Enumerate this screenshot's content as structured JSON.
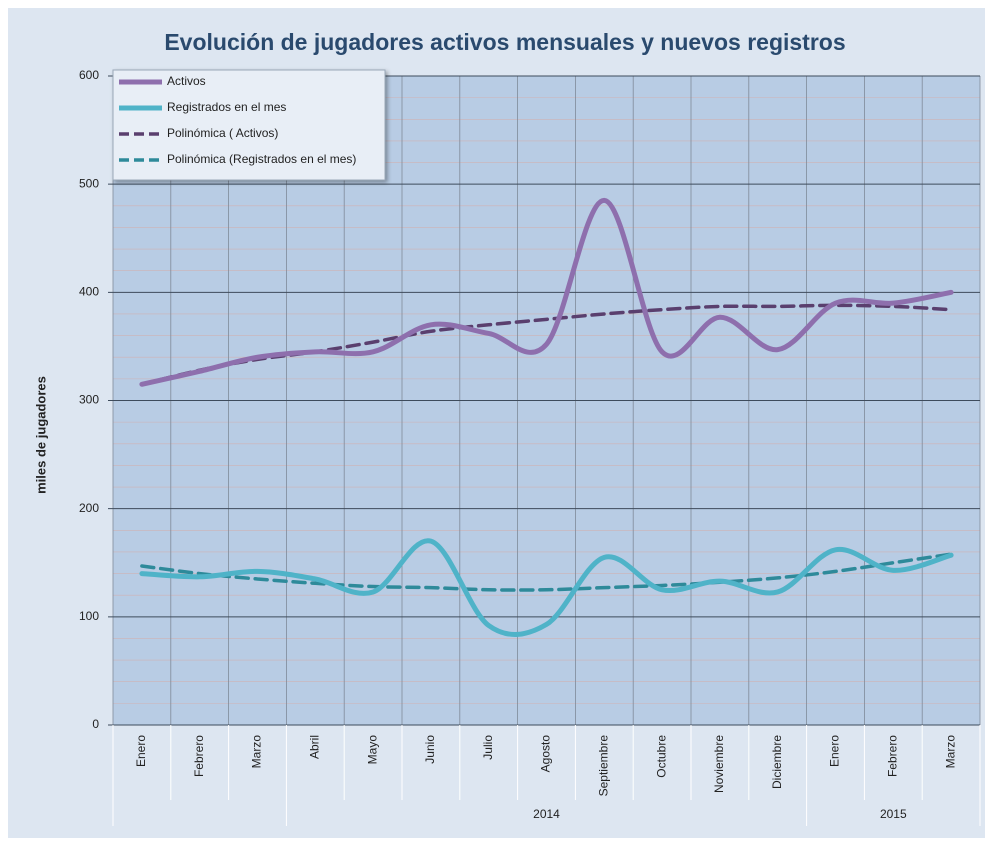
{
  "chart_data": {
    "type": "line",
    "title": "Evolución de jugadores activos mensuales y nuevos registros",
    "y_label": "miles de jugadores",
    "categories": [
      "Enero",
      "Febrero",
      "Marzo",
      "Abril",
      "Mayo",
      "Junio",
      "Julio",
      "Agosto",
      "Septiembre",
      "Octubre",
      "Noviembre",
      "Diciembre",
      "Enero",
      "Febrero",
      "Marzo"
    ],
    "group_labels": [
      null,
      "2014",
      "2015"
    ],
    "group_sizes": [
      3,
      9,
      3
    ],
    "series": [
      {
        "name": "Activos",
        "color": "#8e6fad",
        "dashed": false,
        "values": [
          315,
          327,
          340,
          345,
          345,
          370,
          362,
          352,
          485,
          345,
          377,
          347,
          390,
          390,
          400
        ]
      },
      {
        "name": "Registrados en el mes",
        "color": "#4fb3c8",
        "dashed": false,
        "values": [
          140,
          137,
          142,
          135,
          123,
          170,
          92,
          93,
          155,
          125,
          133,
          123,
          162,
          143,
          157
        ]
      },
      {
        "name": "Polinómica ( Activos)",
        "color": "#5a3f6e",
        "dashed": true,
        "values": [
          315,
          328,
          338,
          345,
          354,
          364,
          370,
          375,
          380,
          384,
          387,
          387,
          388,
          387,
          384
        ]
      },
      {
        "name": "Polinómica (Registrados en el mes)",
        "color": "#2e8a9a",
        "dashed": true,
        "values": [
          147,
          140,
          135,
          131,
          128,
          127,
          125,
          125,
          127,
          129,
          132,
          136,
          142,
          150,
          158
        ]
      }
    ],
    "ylim": [
      0,
      600
    ],
    "yticks": [
      0,
      100,
      200,
      300,
      400,
      500,
      600
    ],
    "minor_step": 20,
    "grid": true,
    "legend": "top-left"
  }
}
